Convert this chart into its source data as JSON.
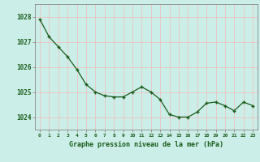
{
  "x": [
    0,
    1,
    2,
    3,
    4,
    5,
    6,
    7,
    8,
    9,
    10,
    11,
    12,
    13,
    14,
    15,
    16,
    17,
    18,
    19,
    20,
    21,
    22,
    23
  ],
  "y": [
    1027.9,
    1027.2,
    1026.8,
    1026.4,
    1025.9,
    1025.3,
    1025.0,
    1024.85,
    1024.8,
    1024.8,
    1025.0,
    1025.2,
    1025.0,
    1024.7,
    1024.1,
    1024.0,
    1024.0,
    1024.2,
    1024.55,
    1024.6,
    1024.45,
    1024.25,
    1024.6,
    1024.45
  ],
  "line_color": "#1a5c1a",
  "marker_color": "#1a5c1a",
  "bg_color": "#cceee8",
  "grid_color": "#e8c8c8",
  "xlabel": "Graphe pression niveau de la mer (hPa)",
  "xlabel_color": "#1a5c1a",
  "yticks": [
    1024,
    1025,
    1026,
    1027,
    1028
  ],
  "ylim": [
    1023.5,
    1028.5
  ],
  "xlim": [
    -0.5,
    23.5
  ],
  "xticks": [
    0,
    1,
    2,
    3,
    4,
    5,
    6,
    7,
    8,
    9,
    10,
    11,
    12,
    13,
    14,
    15,
    16,
    17,
    18,
    19,
    20,
    21,
    22,
    23
  ],
  "tick_color": "#1a5c1a",
  "spine_color": "#888888"
}
